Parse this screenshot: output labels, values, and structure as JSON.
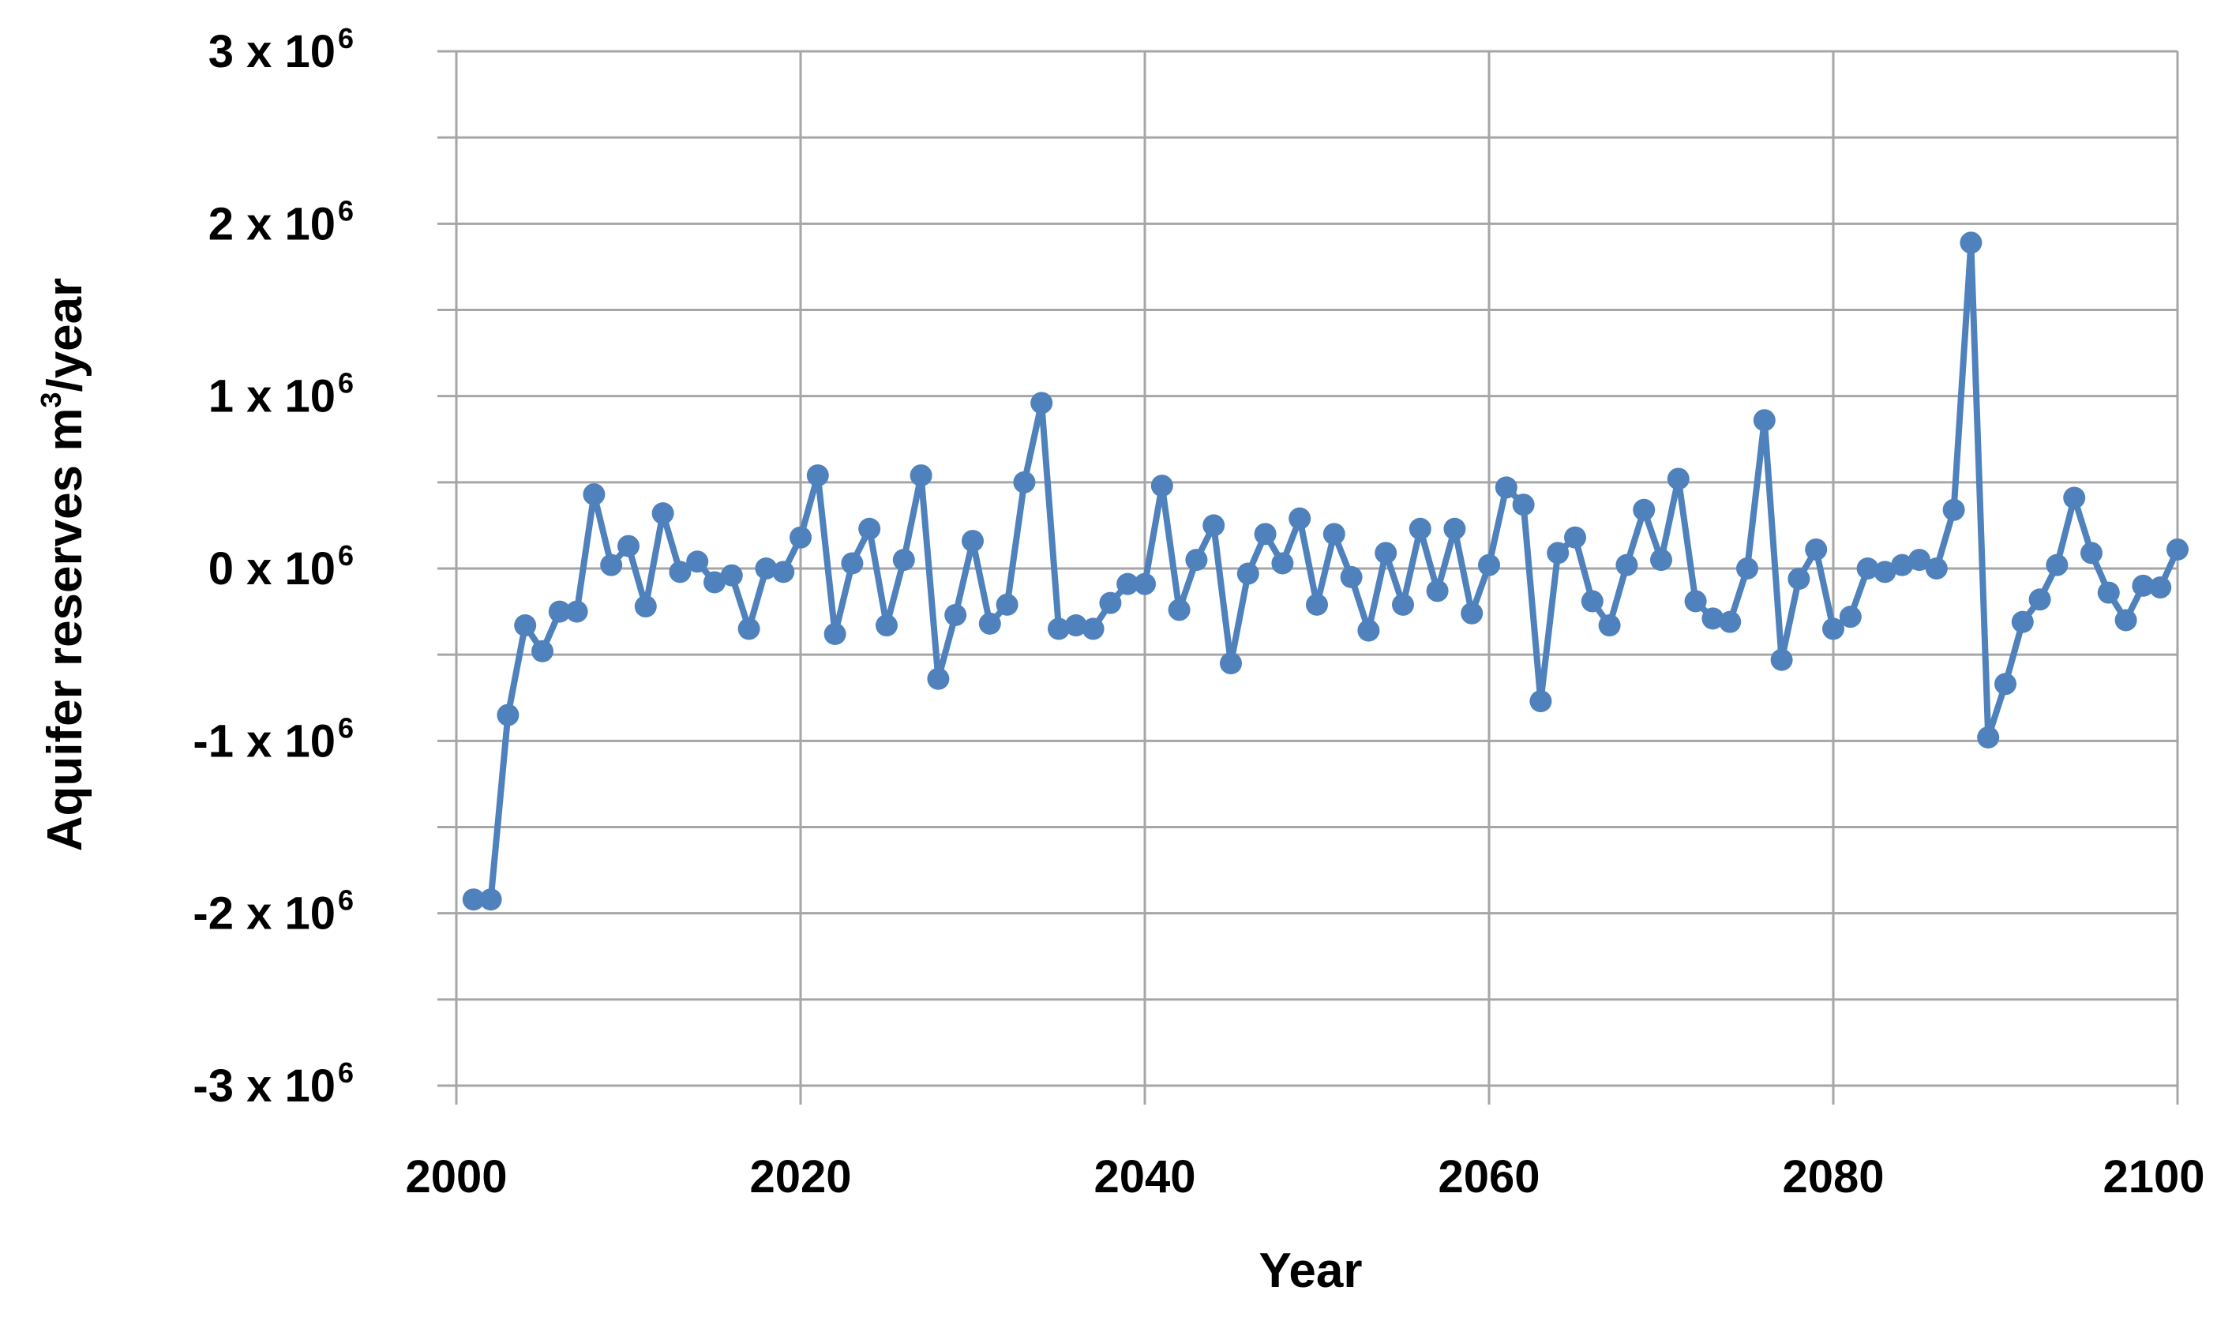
{
  "chart_data": {
    "type": "line",
    "title": "",
    "xlabel": "Year",
    "ylabel_main": "Aquifer  reserves m",
    "ylabel_sup": "3",
    "ylabel_tail": "/year",
    "xlim": [
      2000,
      2100
    ],
    "ylim": [
      -3000000,
      3000000
    ],
    "x_ticks": [
      2000,
      2020,
      2040,
      2060,
      2080,
      2100
    ],
    "x_tick_labels": [
      "2000",
      "2020",
      "2040",
      "2060",
      "2080",
      "2100"
    ],
    "y_ticks": [
      3000000,
      2000000,
      1000000,
      0,
      -1000000,
      -2000000,
      -3000000
    ],
    "y_tick_labels": [
      {
        "base": "3 x 10",
        "exp": "6"
      },
      {
        "base": "2 x 10",
        "exp": "6"
      },
      {
        "base": "1 x 10",
        "exp": "6"
      },
      {
        "base": "0 x 10",
        "exp": "6"
      },
      {
        "base": "-1 x 10",
        "exp": "6"
      },
      {
        "base": "-2 x 10",
        "exp": "6"
      },
      {
        "base": "-3 x 10",
        "exp": "6"
      }
    ],
    "y_minor_gridlines": [
      2500000,
      1500000,
      500000,
      -500000,
      -1500000,
      -2500000
    ],
    "grid": true,
    "legend": "none",
    "series_color": "#4f81bd",
    "grid_color": "#a6a6a6",
    "series": [
      {
        "x": [
          2001,
          2002,
          2003,
          2004,
          2005,
          2006,
          2007,
          2008,
          2009,
          2010,
          2011,
          2012,
          2013,
          2014,
          2015,
          2016,
          2017,
          2018,
          2019,
          2020,
          2021,
          2022,
          2023,
          2024,
          2025,
          2026,
          2027,
          2028,
          2029,
          2030,
          2031,
          2032,
          2033,
          2034,
          2035,
          2036,
          2037,
          2038,
          2039,
          2040,
          2041,
          2042,
          2043,
          2044,
          2045,
          2046,
          2047,
          2048,
          2049,
          2050,
          2051,
          2052,
          2053,
          2054,
          2055,
          2056,
          2057,
          2058,
          2059,
          2060,
          2061,
          2062,
          2063,
          2064,
          2065,
          2066,
          2067,
          2068,
          2069,
          2070,
          2071,
          2072,
          2073,
          2074,
          2075,
          2076,
          2077,
          2078,
          2079,
          2080,
          2081,
          2082,
          2083,
          2084,
          2085,
          2086,
          2087,
          2088,
          2089,
          2090,
          2091,
          2092,
          2093,
          2094,
          2095,
          2096,
          2097,
          2098,
          2099,
          2100
        ],
        "values": [
          -1920000,
          -1920000,
          -850000,
          -330000,
          -480000,
          -250000,
          -250000,
          430000,
          20000,
          130000,
          -220000,
          320000,
          -20000,
          40000,
          -80000,
          -40000,
          -350000,
          0,
          -20000,
          180000,
          540000,
          -380000,
          30000,
          230000,
          -330000,
          50000,
          540000,
          -640000,
          -270000,
          160000,
          -320000,
          -210000,
          500000,
          960000,
          -350000,
          -330000,
          -350000,
          -200000,
          -90000,
          -90000,
          480000,
          -240000,
          50000,
          250000,
          -550000,
          -30000,
          200000,
          30000,
          290000,
          -210000,
          200000,
          -50000,
          -360000,
          90000,
          -210000,
          230000,
          -130000,
          230000,
          -260000,
          20000,
          470000,
          370000,
          -770000,
          90000,
          180000,
          -190000,
          -330000,
          20000,
          340000,
          50000,
          520000,
          -190000,
          -290000,
          -310000,
          0,
          860000,
          -530000,
          -60000,
          110000,
          -350000,
          -280000,
          0,
          -20000,
          20000,
          50000,
          0,
          340000,
          1890000,
          -980000,
          -670000,
          -310000,
          -180000,
          20000,
          410000,
          90000,
          -140000,
          -300000,
          -100000,
          -110000,
          110000
        ]
      }
    ]
  }
}
